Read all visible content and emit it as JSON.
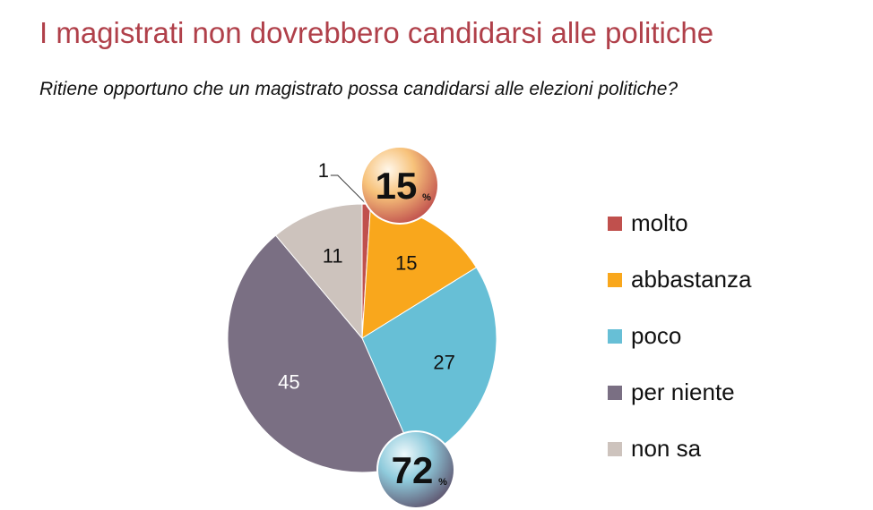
{
  "title": "I magistrati non dovrebbero candidarsi alle politiche",
  "subtitle": "Ritiene opportuno che un magistrato possa candidarsi alle elezioni politiche?",
  "chart_data": {
    "type": "pie",
    "categories": [
      "molto",
      "abbastanza",
      "poco",
      "per niente",
      "non sa"
    ],
    "values": [
      1,
      15,
      27,
      45,
      11
    ],
    "colors": [
      "#c0504d",
      "#f9a71c",
      "#67bfd6",
      "#7a6f83",
      "#cdc3bd"
    ],
    "legend_position": "right",
    "annotations": [
      {
        "value": "15",
        "unit": "%",
        "applies_to": [
          "molto",
          "abbastanza"
        ]
      },
      {
        "value": "72",
        "unit": "%",
        "applies_to": [
          "poco",
          "per niente"
        ]
      }
    ]
  }
}
